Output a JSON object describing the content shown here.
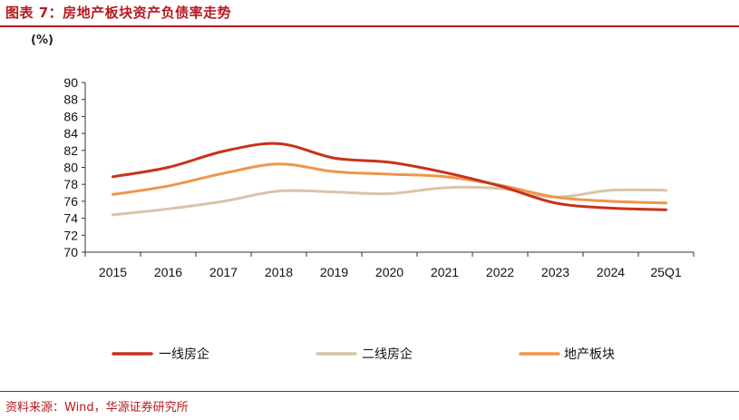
{
  "header": {
    "title": "图表 7：房地产板块资产负债率走势"
  },
  "footer": {
    "source": "资料来源：Wind，华源证券研究所"
  },
  "chart_data": {
    "type": "line",
    "unit_label": "(%)",
    "categories": [
      "2015",
      "2016",
      "2017",
      "2018",
      "2019",
      "2020",
      "2021",
      "2022",
      "2023",
      "2024",
      "25Q1"
    ],
    "ylim": [
      70,
      90
    ],
    "yticks": [
      70,
      72,
      74,
      76,
      78,
      80,
      82,
      84,
      86,
      88,
      90
    ],
    "grid": false,
    "legend_position": "bottom",
    "series": [
      {
        "name": "一线房企",
        "color": "#c8321a",
        "values": [
          78.9,
          80.0,
          81.9,
          82.8,
          81.1,
          80.6,
          79.4,
          77.8,
          75.8,
          75.2,
          75.0
        ]
      },
      {
        "name": "二线房企",
        "color": "#d9c3a8",
        "values": [
          74.4,
          75.1,
          76.0,
          77.2,
          77.1,
          76.9,
          77.6,
          77.5,
          76.5,
          77.3,
          77.3
        ]
      },
      {
        "name": "地产板块",
        "color": "#f0954a",
        "values": [
          76.8,
          77.8,
          79.3,
          80.4,
          79.5,
          79.2,
          78.9,
          77.9,
          76.5,
          76.0,
          75.8
        ]
      }
    ]
  }
}
